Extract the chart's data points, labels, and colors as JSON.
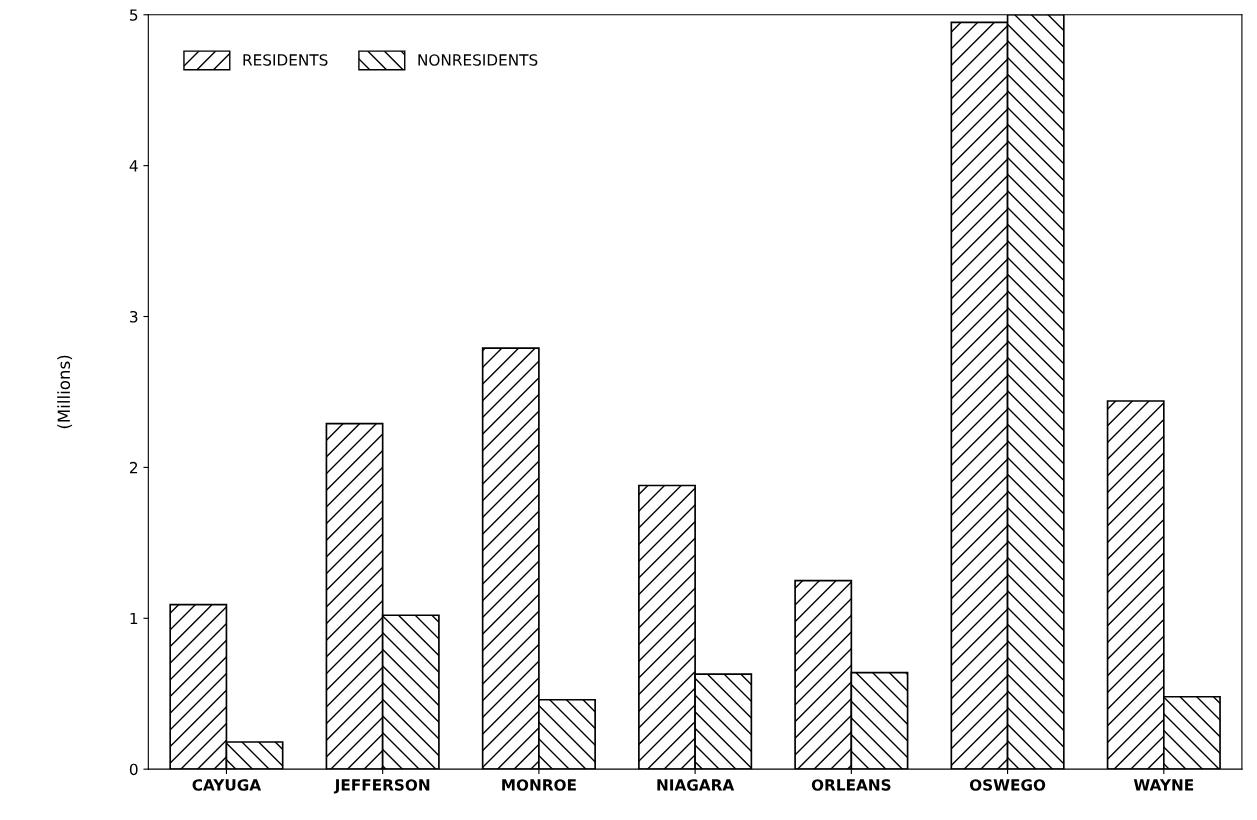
{
  "chart_data": {
    "type": "bar",
    "ylabel": "(Millions)",
    "categories": [
      "CAYUGA",
      "JEFFERSON",
      "MONROE",
      "NIAGARA",
      "ORLEANS",
      "OSWEGO",
      "WAYNE"
    ],
    "series": [
      {
        "name": "RESIDENTS",
        "color": "#000000",
        "values": [
          1.09,
          2.29,
          2.79,
          1.88,
          1.25,
          4.95,
          2.44
        ]
      },
      {
        "name": "NONRESIDENTS",
        "color": "#000000",
        "values": [
          0.18,
          1.02,
          0.46,
          0.63,
          0.64,
          5.0,
          0.48
        ]
      }
    ],
    "ylim": [
      0,
      5
    ],
    "yticks": [
      0,
      1,
      2,
      3,
      4,
      5
    ],
    "grid": false,
    "legend": "top left"
  }
}
